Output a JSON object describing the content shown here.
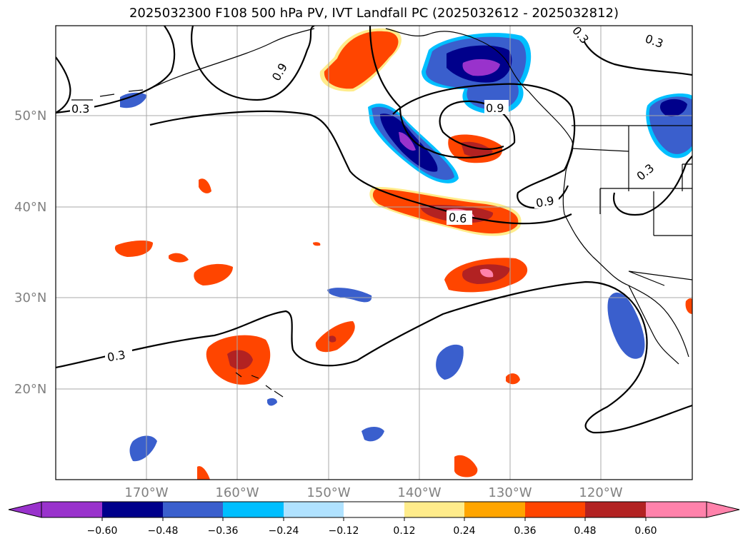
{
  "title": "2025032300 F108 500 hPa PV, IVT Landfall PC (2025032612 - 2025032812)",
  "lat_labels": [
    "50°N",
    "40°N",
    "30°N",
    "20°N"
  ],
  "lon_labels": [
    "170°W",
    "160°W",
    "150°W",
    "140°W",
    "130°W",
    "120°W"
  ],
  "contour_labels": [
    {
      "text": "0.3",
      "id": "nw"
    },
    {
      "text": "0.9",
      "id": "aleutian"
    },
    {
      "text": "0.3",
      "id": "ne-top"
    },
    {
      "text": "0.9",
      "id": "ne-low"
    },
    {
      "text": "0.3",
      "id": "east"
    },
    {
      "text": "0.9",
      "id": "coast"
    },
    {
      "text": "0.6",
      "id": "center"
    },
    {
      "text": "0.3",
      "id": "sw"
    }
  ],
  "colorbar": {
    "ticks": [
      "−0.60",
      "−0.48",
      "−0.36",
      "−0.24",
      "−0.12",
      "0.12",
      "0.24",
      "0.36",
      "0.48",
      "0.60"
    ],
    "colors": [
      "#9932cc",
      "#00008b",
      "#3a5fcd",
      "#00bfff",
      "#b0e2ff",
      "#ffffff",
      "#ffec8b",
      "#ffa500",
      "#ff4500",
      "#b22222",
      "#ff82ab"
    ]
  }
}
